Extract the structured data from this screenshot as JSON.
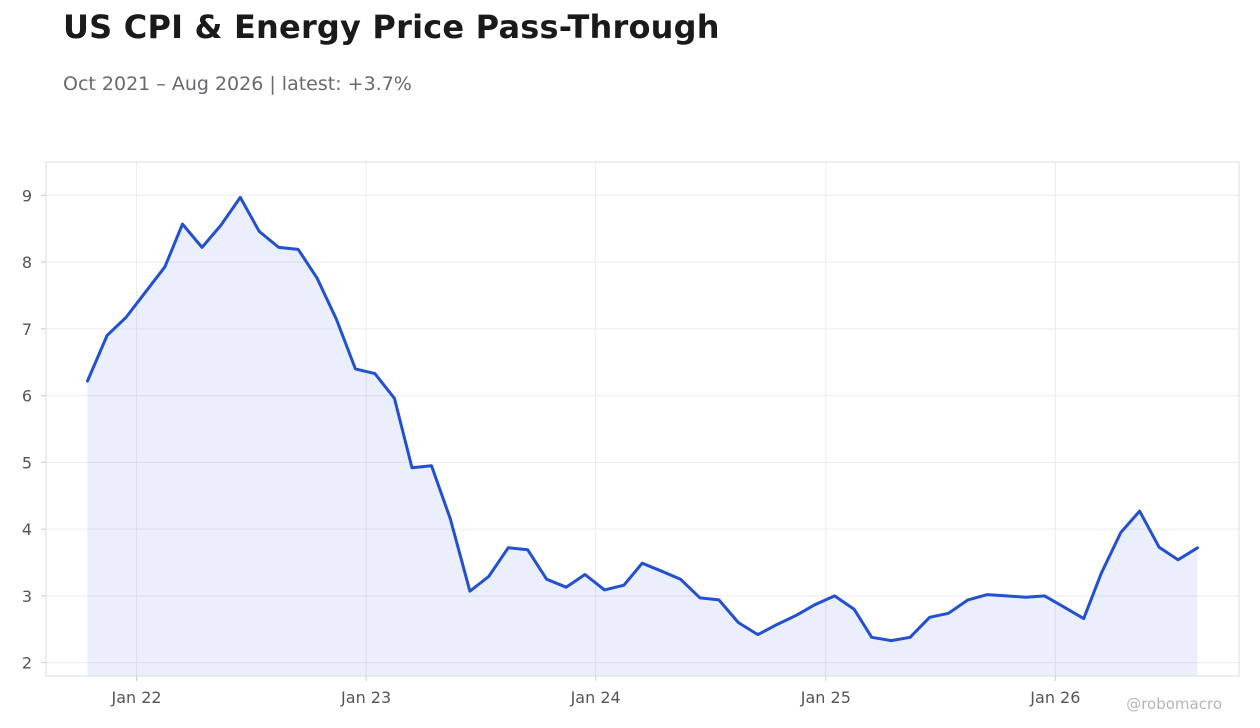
{
  "header": {
    "title": "US CPI & Energy Price Pass-Through",
    "subtitle": "Oct 2021 – Aug 2026 | latest: +3.7%"
  },
  "watermark": "@robomacro",
  "colors": {
    "line": "#2250d0",
    "fill": "#2250d0",
    "grid": "#ececec",
    "frame": "#dddddd",
    "tick_text": "#555555"
  },
  "chart_data": {
    "type": "area",
    "title": "US CPI & Energy Price Pass-Through",
    "subtitle": "Oct 2021 – Aug 2026 | latest: +3.7%",
    "xlabel": "",
    "ylabel": "",
    "x_start": "2021-10",
    "x_frequency": "monthly",
    "ylim": [
      1.8,
      9.5
    ],
    "xlim": [
      "2021-08-10",
      "2026-10-20"
    ],
    "grid": true,
    "legend": "none",
    "x_ticks": [
      {
        "date": "2022-01-01",
        "label": "Jan 22"
      },
      {
        "date": "2023-01-01",
        "label": "Jan 23"
      },
      {
        "date": "2024-01-01",
        "label": "Jan 24"
      },
      {
        "date": "2025-01-01",
        "label": "Jan 25"
      },
      {
        "date": "2026-01-01",
        "label": "Jan 26"
      }
    ],
    "y_ticks": [
      2,
      3,
      4,
      5,
      6,
      7,
      8,
      9
    ],
    "series": [
      {
        "x": [
          "2021-10",
          "2021-11",
          "2021-12",
          "2022-01",
          "2022-02",
          "2022-03",
          "2022-04",
          "2022-05",
          "2022-06",
          "2022-07",
          "2022-08",
          "2022-09",
          "2022-10",
          "2022-11",
          "2022-12",
          "2023-01",
          "2023-02",
          "2023-03",
          "2023-04",
          "2023-05",
          "2023-06",
          "2023-07",
          "2023-08",
          "2023-09",
          "2023-10",
          "2023-11",
          "2023-12",
          "2024-01",
          "2024-02",
          "2024-03",
          "2024-04",
          "2024-05",
          "2024-06",
          "2024-07",
          "2024-08",
          "2024-09",
          "2024-10",
          "2024-11",
          "2024-12",
          "2025-01",
          "2025-02",
          "2025-03",
          "2025-04",
          "2025-05",
          "2025-06",
          "2025-07",
          "2025-08",
          "2025-09",
          "2025-10",
          "2025-11",
          "2025-12",
          "2026-01",
          "2026-02",
          "2026-03",
          "2026-04",
          "2026-05",
          "2026-06",
          "2026-07",
          "2026-08"
        ],
        "values": [
          6.22,
          6.9,
          7.17,
          7.55,
          7.93,
          8.57,
          8.22,
          8.55,
          8.97,
          8.46,
          8.22,
          8.19,
          7.76,
          7.14,
          6.4,
          6.33,
          5.96,
          4.92,
          4.95,
          4.15,
          3.07,
          3.29,
          3.72,
          3.69,
          3.25,
          3.13,
          3.32,
          3.09,
          3.16,
          3.49,
          3.37,
          3.25,
          2.97,
          2.94,
          2.6,
          2.42,
          2.57,
          2.71,
          2.87,
          3.0,
          2.8,
          2.38,
          2.33,
          2.38,
          2.68,
          2.74,
          2.94,
          3.02,
          3.0,
          2.98,
          3.0,
          2.83,
          2.66,
          3.34,
          3.95,
          4.27,
          3.73,
          3.54,
          3.72
        ]
      }
    ]
  }
}
